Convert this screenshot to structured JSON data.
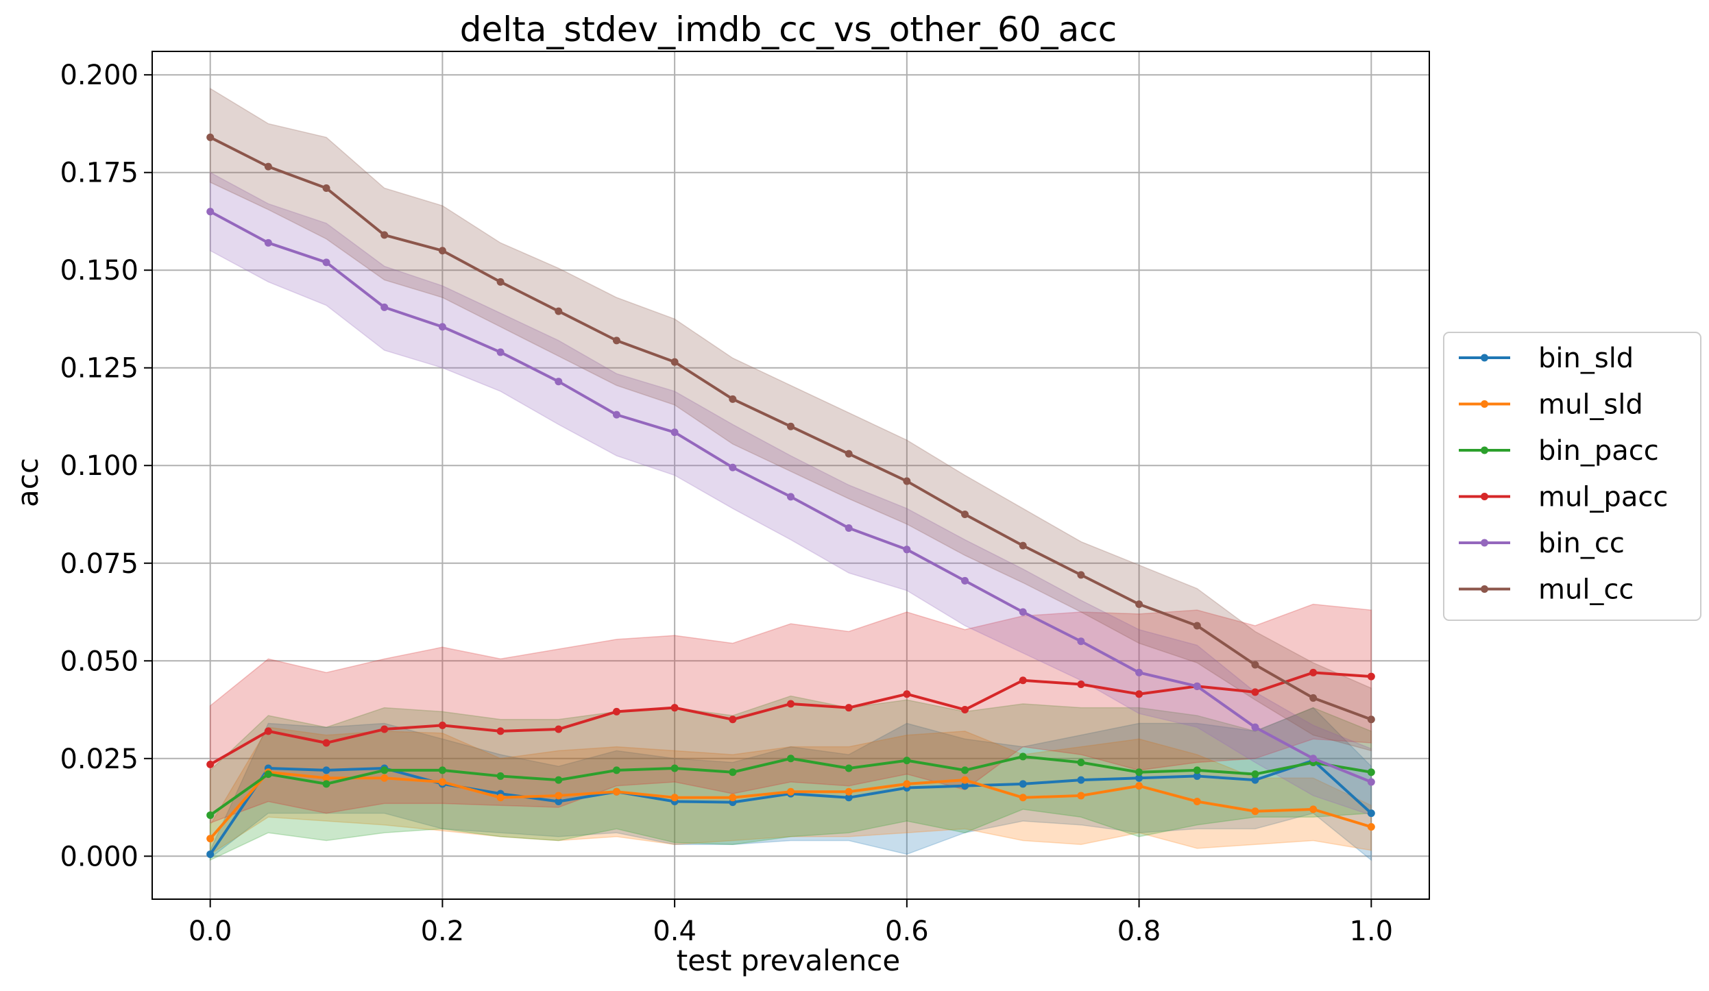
{
  "chart_data": {
    "type": "line",
    "title": "delta_stdev_imdb_cc_vs_other_60_acc",
    "xlabel": "test prevalence",
    "ylabel": "acc",
    "xlim": [
      -0.05,
      1.05
    ],
    "ylim": [
      -0.011,
      0.206
    ],
    "xticks": [
      0.0,
      0.2,
      0.4,
      0.6,
      0.8,
      1.0
    ],
    "xtick_labels": [
      "0.0",
      "0.2",
      "0.4",
      "0.6",
      "0.8",
      "1.0"
    ],
    "yticks": [
      0.0,
      0.025,
      0.05,
      0.075,
      0.1,
      0.125,
      0.15,
      0.175,
      0.2
    ],
    "ytick_labels": [
      "0.000",
      "0.025",
      "0.050",
      "0.075",
      "0.100",
      "0.125",
      "0.150",
      "0.175",
      "0.200"
    ],
    "grid": true,
    "legend_position": "right, outside plot",
    "x": [
      0.0,
      0.05,
      0.1,
      0.15,
      0.2,
      0.25,
      0.3,
      0.35,
      0.4,
      0.45,
      0.5,
      0.55,
      0.6,
      0.65,
      0.7,
      0.75,
      0.8,
      0.85,
      0.9,
      0.95,
      1.0
    ],
    "series": [
      {
        "name": "bin_sld",
        "color": "#1f77b4",
        "values": [
          0.0005,
          0.0225,
          0.022,
          0.0225,
          0.0185,
          0.016,
          0.014,
          0.0165,
          0.014,
          0.0138,
          0.016,
          0.015,
          0.0175,
          0.018,
          0.0185,
          0.0195,
          0.02,
          0.0205,
          0.0195,
          0.0245,
          0.011
        ],
        "lower": [
          -0.0005,
          0.011,
          0.011,
          0.011,
          0.007,
          0.006,
          0.005,
          0.006,
          0.003,
          0.003,
          0.004,
          0.004,
          0.0005,
          0.006,
          0.009,
          0.008,
          0.006,
          0.007,
          0.007,
          0.011,
          -0.001
        ],
        "upper": [
          0.0015,
          0.034,
          0.033,
          0.034,
          0.03,
          0.026,
          0.023,
          0.027,
          0.025,
          0.024,
          0.028,
          0.026,
          0.034,
          0.03,
          0.028,
          0.031,
          0.034,
          0.034,
          0.032,
          0.038,
          0.023
        ]
      },
      {
        "name": "mul_sld",
        "color": "#ff7f0e",
        "values": [
          0.0045,
          0.0215,
          0.02,
          0.02,
          0.019,
          0.015,
          0.0155,
          0.0165,
          0.015,
          0.015,
          0.0165,
          0.0165,
          0.0185,
          0.0195,
          0.015,
          0.0155,
          0.018,
          0.014,
          0.0115,
          0.012,
          0.0075
        ],
        "lower": [
          0.0005,
          0.01,
          0.009,
          0.008,
          0.0065,
          0.005,
          0.004,
          0.005,
          0.003,
          0.004,
          0.005,
          0.005,
          0.006,
          0.007,
          0.004,
          0.003,
          0.006,
          0.002,
          0.003,
          0.004,
          0.0015
        ],
        "upper": [
          0.008,
          0.033,
          0.031,
          0.032,
          0.0315,
          0.025,
          0.027,
          0.028,
          0.027,
          0.026,
          0.028,
          0.028,
          0.031,
          0.032,
          0.026,
          0.028,
          0.03,
          0.026,
          0.02,
          0.02,
          0.013
        ]
      },
      {
        "name": "bin_pacc",
        "color": "#2ca02c",
        "values": [
          0.0105,
          0.021,
          0.0185,
          0.022,
          0.022,
          0.0205,
          0.0195,
          0.022,
          0.0225,
          0.0215,
          0.025,
          0.0225,
          0.0245,
          0.022,
          0.0255,
          0.024,
          0.0215,
          0.022,
          0.021,
          0.024,
          0.0215
        ],
        "lower": [
          -0.001,
          0.006,
          0.004,
          0.006,
          0.007,
          0.005,
          0.004,
          0.007,
          0.0035,
          0.003,
          0.005,
          0.006,
          0.009,
          0.006,
          0.012,
          0.01,
          0.005,
          0.008,
          0.01,
          0.01,
          0.011
        ],
        "upper": [
          0.022,
          0.036,
          0.033,
          0.038,
          0.037,
          0.035,
          0.035,
          0.037,
          0.038,
          0.036,
          0.041,
          0.038,
          0.04,
          0.037,
          0.039,
          0.038,
          0.038,
          0.036,
          0.032,
          0.038,
          0.032
        ]
      },
      {
        "name": "mul_pacc",
        "color": "#d62728",
        "values": [
          0.0235,
          0.032,
          0.029,
          0.0325,
          0.0335,
          0.032,
          0.0325,
          0.037,
          0.038,
          0.035,
          0.039,
          0.038,
          0.0415,
          0.0375,
          0.045,
          0.044,
          0.0415,
          0.0435,
          0.042,
          0.047,
          0.046
        ],
        "lower": [
          0.0085,
          0.014,
          0.011,
          0.0135,
          0.0135,
          0.013,
          0.0125,
          0.018,
          0.019,
          0.016,
          0.019,
          0.018,
          0.021,
          0.017,
          0.028,
          0.026,
          0.022,
          0.024,
          0.025,
          0.03,
          0.029
        ],
        "upper": [
          0.0385,
          0.0505,
          0.047,
          0.0505,
          0.0535,
          0.0505,
          0.053,
          0.0555,
          0.0565,
          0.0545,
          0.0595,
          0.0575,
          0.0625,
          0.058,
          0.0615,
          0.0625,
          0.062,
          0.063,
          0.059,
          0.0645,
          0.063
        ]
      },
      {
        "name": "bin_cc",
        "color": "#9467bd",
        "values": [
          0.165,
          0.157,
          0.152,
          0.1405,
          0.1355,
          0.129,
          0.1215,
          0.113,
          0.1085,
          0.0995,
          0.092,
          0.084,
          0.0785,
          0.0705,
          0.0625,
          0.055,
          0.047,
          0.0435,
          0.033,
          0.025,
          0.019
        ],
        "lower": [
          0.155,
          0.147,
          0.141,
          0.1295,
          0.125,
          0.119,
          0.1105,
          0.1025,
          0.0975,
          0.089,
          0.081,
          0.0725,
          0.068,
          0.059,
          0.052,
          0.045,
          0.0365,
          0.033,
          0.024,
          0.0155,
          0.0105
        ],
        "upper": [
          0.175,
          0.167,
          0.162,
          0.151,
          0.146,
          0.139,
          0.132,
          0.1235,
          0.119,
          0.1105,
          0.1025,
          0.095,
          0.089,
          0.081,
          0.0735,
          0.0655,
          0.058,
          0.054,
          0.042,
          0.0335,
          0.0275
        ]
      },
      {
        "name": "mul_cc",
        "color": "#8c564b",
        "values": [
          0.184,
          0.1765,
          0.171,
          0.159,
          0.155,
          0.147,
          0.1395,
          0.132,
          0.1265,
          0.117,
          0.11,
          0.103,
          0.096,
          0.0875,
          0.0795,
          0.072,
          0.0645,
          0.059,
          0.049,
          0.0405,
          0.035
        ],
        "lower": [
          0.1725,
          0.1655,
          0.158,
          0.1475,
          0.143,
          0.1355,
          0.128,
          0.1205,
          0.1155,
          0.1055,
          0.0985,
          0.0915,
          0.085,
          0.077,
          0.07,
          0.0625,
          0.0545,
          0.0495,
          0.04,
          0.031,
          0.027
        ],
        "upper": [
          0.1965,
          0.1875,
          0.184,
          0.171,
          0.1665,
          0.157,
          0.1505,
          0.143,
          0.1375,
          0.1275,
          0.1205,
          0.1135,
          0.1065,
          0.0975,
          0.089,
          0.0805,
          0.0745,
          0.0685,
          0.0575,
          0.0495,
          0.043
        ]
      }
    ]
  }
}
